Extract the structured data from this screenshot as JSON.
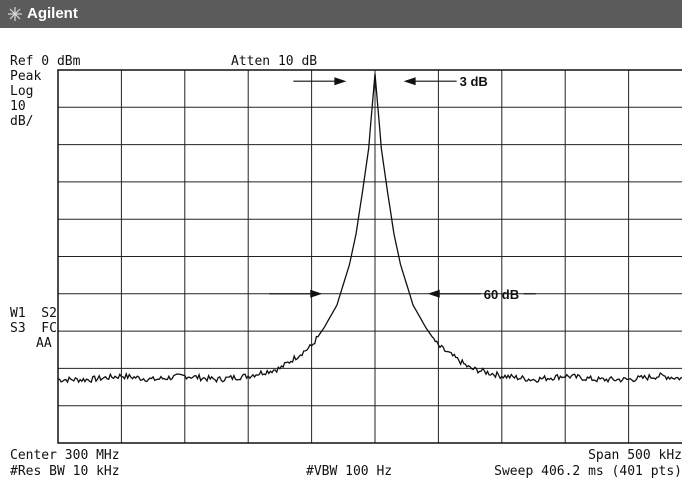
{
  "header": {
    "brand": "Agilent",
    "logo_icon": "agilent-spark-icon"
  },
  "top_readouts": {
    "ref_level": "Ref 0 dBm",
    "attenuation": "Atten 10 dB"
  },
  "left_panel": {
    "detector": "Peak",
    "scale_type": "Log",
    "scale_value": "10",
    "scale_unit": "dB/",
    "trace_line1": "W1  S2",
    "trace_line2": "S3  FC",
    "trace_line3": "AA"
  },
  "bottom_readouts": {
    "center": "Center 300 MHz",
    "span": "Span 500 kHz",
    "res_bw": "#Res BW 10 kHz",
    "vbw": "#VBW 100 Hz",
    "sweep": "Sweep 406.2 ms (401 pts)"
  },
  "chart_data": {
    "type": "line",
    "title": "",
    "xlabel": "",
    "ylabel": "",
    "x_unit": "kHz offset from center (300 MHz)",
    "y_unit": "dBm",
    "xlim": [
      -250,
      250
    ],
    "ylim": [
      -100,
      0
    ],
    "grid": true,
    "grid_divisions": {
      "x": 10,
      "y": 10
    },
    "series": [
      {
        "x": [
          -250,
          -225,
          -200,
          -175,
          -150,
          -125,
          -100,
          -75,
          -50,
          -40,
          -30,
          -20,
          -15,
          -10,
          -5,
          0,
          5,
          10,
          15,
          20,
          30,
          40,
          50,
          75,
          100,
          125,
          150,
          175,
          200,
          225,
          250
        ],
        "y": [
          -83,
          -83,
          -82,
          -83,
          -82,
          -83,
          -82,
          -80,
          -74,
          -69,
          -63,
          -52,
          -44,
          -33,
          -21,
          -1,
          -21,
          -33,
          -44,
          -52,
          -63,
          -69,
          -74,
          -80,
          -82,
          -83,
          -82,
          -83,
          -83,
          -82,
          -83
        ]
      }
    ],
    "annotations": [
      {
        "text": "3 dB",
        "level_dbm": -3,
        "arrow_left_x": -21,
        "arrow_right_x": 21
      },
      {
        "text": "60 dB",
        "level_dbm": -60,
        "arrow_left_x": -40,
        "arrow_right_x": 40
      }
    ]
  }
}
